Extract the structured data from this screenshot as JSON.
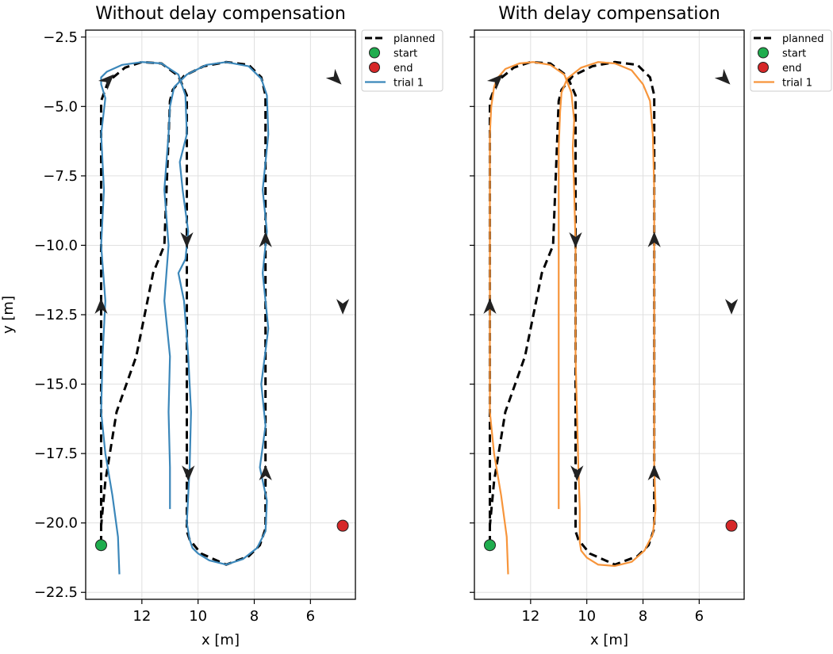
{
  "chart_data": [
    {
      "type": "line",
      "title": "Without delay compensation",
      "xlabel": "x [m]",
      "ylabel": "y [m]",
      "x_inverted": true,
      "xlim": [
        14.0,
        4.4
      ],
      "ylim": [
        -22.75,
        -2.25
      ],
      "xticks": [
        12,
        10,
        8,
        6
      ],
      "xtick_labels": [
        "12",
        "10",
        "8",
        "6"
      ],
      "yticks": [
        -2.5,
        -5.0,
        -7.5,
        -10.0,
        -12.5,
        -15.0,
        -17.5,
        -20.0,
        -22.5
      ],
      "ytick_labels": [
        "−2.5",
        "−5.0",
        "−7.5",
        "−10.0",
        "−12.5",
        "−15.0",
        "−17.5",
        "−20.0",
        "−22.5"
      ],
      "grid": true,
      "legend": {
        "position": "outside-top-right",
        "entries": [
          {
            "label": "planned",
            "style": "dashed",
            "color": "#000000"
          },
          {
            "label": "start",
            "marker": "circle",
            "color": "#1fad4e"
          },
          {
            "label": "end",
            "marker": "circle",
            "color": "#d62728"
          },
          {
            "label": "trial 1",
            "style": "solid",
            "color": "#3b87ba"
          }
        ]
      },
      "planned": {
        "x": [
          13.45,
          13.45,
          13.45,
          13.2,
          12.6,
          12.0,
          11.3,
          10.7,
          10.4,
          10.4,
          10.4,
          10.4,
          10.3,
          9.9,
          9.0,
          8.2,
          7.8,
          7.6,
          7.6,
          7.6,
          7.6,
          7.75,
          8.2,
          9.0,
          9.8,
          10.5,
          10.9,
          11.0,
          11.2,
          11.6,
          12.2,
          12.9,
          13.3,
          13.45
        ],
        "y": [
          -20.75,
          -18.0,
          -4.8,
          -4.1,
          -3.6,
          -3.4,
          -3.45,
          -3.9,
          -4.6,
          -10.0,
          -18.0,
          -20.3,
          -20.6,
          -21.1,
          -21.5,
          -21.2,
          -20.8,
          -20.2,
          -18.0,
          -10.0,
          -4.6,
          -3.95,
          -3.5,
          -3.4,
          -3.55,
          -3.9,
          -4.4,
          -4.8,
          -10.0,
          -11.0,
          -14.0,
          -16.0,
          -18.5,
          -20.1
        ]
      },
      "trial": {
        "name": "trial 1",
        "x": [
          12.8,
          12.85,
          13.05,
          13.3,
          13.45,
          13.4,
          13.3,
          13.45,
          13.35,
          13.45,
          13.3,
          13.45,
          13.45,
          13.25,
          12.7,
          12.0,
          11.3,
          10.7,
          10.45,
          10.4,
          10.65,
          10.55,
          10.35,
          10.45,
          10.7,
          10.5,
          10.35,
          10.25,
          10.3,
          10.4,
          10.3,
          10.2,
          10.0,
          9.6,
          9.0,
          8.4,
          7.9,
          7.6,
          7.55,
          7.8,
          7.6,
          7.75,
          7.5,
          7.7,
          7.55,
          7.7,
          7.5,
          7.55,
          7.75,
          8.2,
          9.0,
          9.7,
          10.4,
          10.85,
          11.0,
          11.05,
          11.2,
          11.05,
          11.2,
          11.0
        ],
        "y": [
          -21.85,
          -20.5,
          -19.0,
          -17.5,
          -16.0,
          -14.0,
          -12.0,
          -10.0,
          -8.0,
          -6.0,
          -4.7,
          -4.2,
          -3.95,
          -3.75,
          -3.5,
          -3.4,
          -3.45,
          -3.85,
          -4.6,
          -6.0,
          -7.0,
          -8.0,
          -9.5,
          -10.5,
          -11.0,
          -12.0,
          -14.0,
          -16.0,
          -18.0,
          -20.0,
          -20.6,
          -20.9,
          -21.1,
          -21.35,
          -21.5,
          -21.3,
          -20.9,
          -20.3,
          -19.2,
          -18.0,
          -16.5,
          -15.0,
          -13.0,
          -11.0,
          -9.5,
          -8.0,
          -6.0,
          -4.6,
          -4.0,
          -3.55,
          -3.4,
          -3.5,
          -3.85,
          -4.3,
          -5.0,
          -6.0,
          -8.0,
          -10.0,
          -12.0,
          -14.0
        ]
      },
      "trial_tail": {
        "x": [
          11.05,
          11.0,
          11.0
        ],
        "y": [
          -16.0,
          -18.0,
          -19.5
        ]
      },
      "arrows": [
        {
          "x": 13.45,
          "y": -12.2,
          "dir": "up"
        },
        {
          "x": 13.2,
          "y": -4.05,
          "dir": "up-right"
        },
        {
          "x": 10.4,
          "y": -9.8,
          "dir": "down"
        },
        {
          "x": 10.35,
          "y": -18.2,
          "dir": "down"
        },
        {
          "x": 7.6,
          "y": -9.8,
          "dir": "up"
        },
        {
          "x": 7.6,
          "y": -18.2,
          "dir": "up"
        },
        {
          "x": 5.1,
          "y": -4.0,
          "dir": "down-right"
        },
        {
          "x": 4.85,
          "y": -12.2,
          "dir": "down"
        }
      ],
      "start": {
        "x": 13.45,
        "y": -20.8
      },
      "end": {
        "x": 4.85,
        "y": -20.1
      }
    },
    {
      "type": "line",
      "title": "With delay compensation",
      "xlabel": "x [m]",
      "ylabel": "",
      "x_inverted": true,
      "xlim": [
        14.0,
        4.4
      ],
      "ylim": [
        -22.75,
        -2.25
      ],
      "xticks": [
        12,
        10,
        8,
        6
      ],
      "xtick_labels": [
        "12",
        "10",
        "8",
        "6"
      ],
      "yticks": [
        -2.5,
        -5.0,
        -7.5,
        -10.0,
        -12.5,
        -15.0,
        -17.5,
        -20.0,
        -22.5
      ],
      "ytick_labels": [],
      "grid": true,
      "legend": {
        "position": "outside-top-right",
        "entries": [
          {
            "label": "planned",
            "style": "dashed",
            "color": "#000000"
          },
          {
            "label": "start",
            "marker": "circle",
            "color": "#1fad4e"
          },
          {
            "label": "end",
            "marker": "circle",
            "color": "#d62728"
          },
          {
            "label": "trial 1",
            "style": "solid",
            "color": "#f7953b"
          }
        ]
      },
      "planned": {
        "x": [
          13.45,
          13.45,
          13.45,
          13.2,
          12.6,
          12.0,
          11.3,
          10.7,
          10.4,
          10.4,
          10.4,
          10.4,
          10.3,
          9.9,
          9.0,
          8.2,
          7.8,
          7.6,
          7.6,
          7.6,
          7.6,
          7.75,
          8.2,
          9.0,
          9.8,
          10.5,
          10.9,
          11.0,
          11.2,
          11.6,
          12.2,
          12.9,
          13.3,
          13.45
        ],
        "y": [
          -20.75,
          -18.0,
          -4.8,
          -4.1,
          -3.6,
          -3.4,
          -3.45,
          -3.9,
          -4.6,
          -10.0,
          -18.0,
          -20.3,
          -20.6,
          -21.1,
          -21.5,
          -21.2,
          -20.8,
          -20.2,
          -18.0,
          -10.0,
          -4.6,
          -3.95,
          -3.5,
          -3.4,
          -3.55,
          -3.9,
          -4.4,
          -4.8,
          -10.0,
          -11.0,
          -14.0,
          -16.0,
          -18.5,
          -20.1
        ]
      },
      "trial": {
        "name": "trial 1",
        "x": [
          12.8,
          12.85,
          13.05,
          13.3,
          13.45,
          13.45,
          13.45,
          13.45,
          13.45,
          13.45,
          13.4,
          13.3,
          13.2,
          12.9,
          12.4,
          11.9,
          11.3,
          10.8,
          10.55,
          10.45,
          10.5,
          10.45,
          10.4,
          10.4,
          10.4,
          10.35,
          10.3,
          10.25,
          10.25,
          10.25,
          10.2,
          10.0,
          9.6,
          9.0,
          8.4,
          7.95,
          7.65,
          7.55,
          7.6,
          7.6,
          7.6,
          7.6,
          7.6,
          7.6,
          7.65,
          7.75,
          8.0,
          8.4,
          9.0,
          9.6,
          10.2,
          10.7,
          10.9,
          10.95,
          11.0,
          11.0,
          11.0,
          11.0,
          11.0,
          11.0
        ],
        "y": [
          -21.85,
          -20.5,
          -19.0,
          -17.5,
          -16.0,
          -14.0,
          -12.0,
          -10.0,
          -8.0,
          -6.0,
          -5.0,
          -4.3,
          -4.0,
          -3.65,
          -3.45,
          -3.4,
          -3.5,
          -3.85,
          -4.5,
          -5.5,
          -6.5,
          -8.0,
          -10.0,
          -12.0,
          -14.0,
          -16.0,
          -18.0,
          -19.5,
          -20.3,
          -20.7,
          -21.0,
          -21.25,
          -21.5,
          -21.55,
          -21.4,
          -21.0,
          -20.4,
          -19.5,
          -18.0,
          -16.0,
          -14.0,
          -12.0,
          -10.0,
          -8.0,
          -6.0,
          -4.8,
          -4.2,
          -3.7,
          -3.45,
          -3.4,
          -3.6,
          -4.0,
          -4.5,
          -5.2,
          -6.5,
          -8.0,
          -10.0,
          -12.0,
          -14.0,
          -16.0
        ]
      },
      "trial_tail": {
        "x": [
          11.0,
          11.0,
          11.0
        ],
        "y": [
          -16.0,
          -18.0,
          -19.5
        ]
      },
      "arrows": [
        {
          "x": 13.45,
          "y": -12.2,
          "dir": "up"
        },
        {
          "x": 13.2,
          "y": -4.05,
          "dir": "up-right"
        },
        {
          "x": 10.4,
          "y": -9.8,
          "dir": "down"
        },
        {
          "x": 10.35,
          "y": -18.2,
          "dir": "down"
        },
        {
          "x": 7.6,
          "y": -9.8,
          "dir": "up"
        },
        {
          "x": 7.6,
          "y": -18.2,
          "dir": "up"
        },
        {
          "x": 5.1,
          "y": -4.0,
          "dir": "down-right"
        },
        {
          "x": 4.85,
          "y": -12.2,
          "dir": "down"
        }
      ],
      "start": {
        "x": 13.45,
        "y": -20.8
      },
      "end": {
        "x": 4.85,
        "y": -20.1
      }
    }
  ]
}
